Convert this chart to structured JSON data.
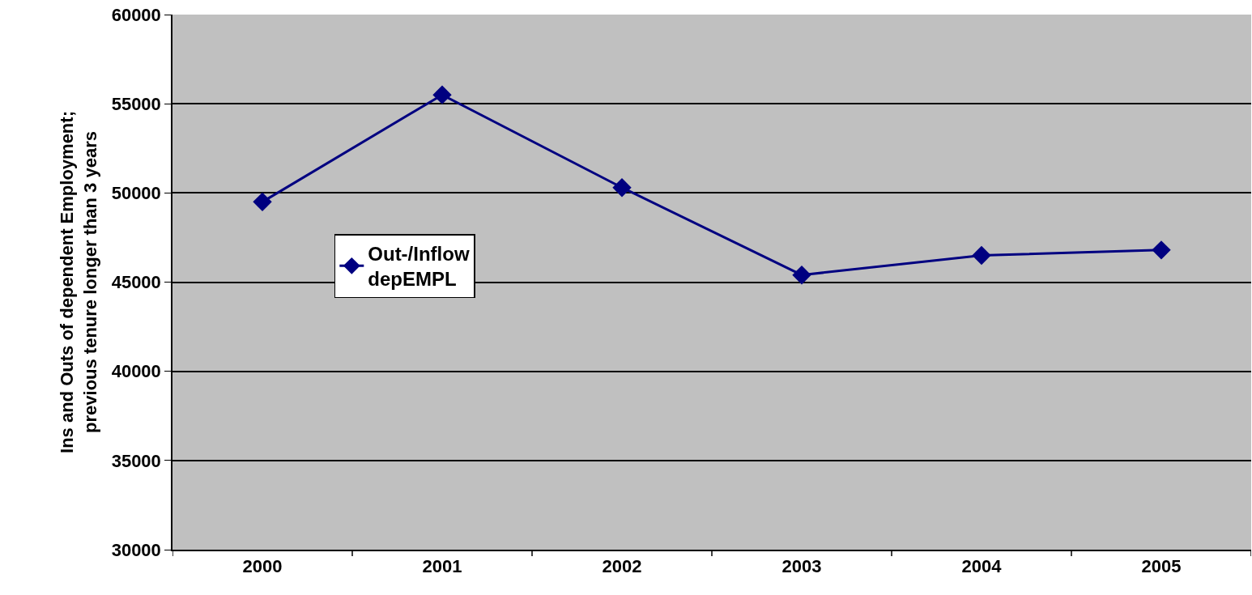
{
  "chart_data": {
    "type": "line",
    "ylabel": "Ins and Outs of dependent Employment; previous tenure longer than 3 years",
    "categories": [
      "2000",
      "2001",
      "2002",
      "2003",
      "2004",
      "2005"
    ],
    "series": [
      {
        "name": "Out-/Inflow depEMPL",
        "color": "#000080",
        "values": [
          49500,
          55500,
          50300,
          45400,
          46500,
          46800
        ]
      }
    ],
    "ylim": [
      30000,
      60000
    ],
    "yticks": [
      30000,
      35000,
      40000,
      45000,
      50000,
      55000,
      60000
    ],
    "grid": "y",
    "legend": "left",
    "marker": "diamond",
    "line_style": "solid"
  }
}
